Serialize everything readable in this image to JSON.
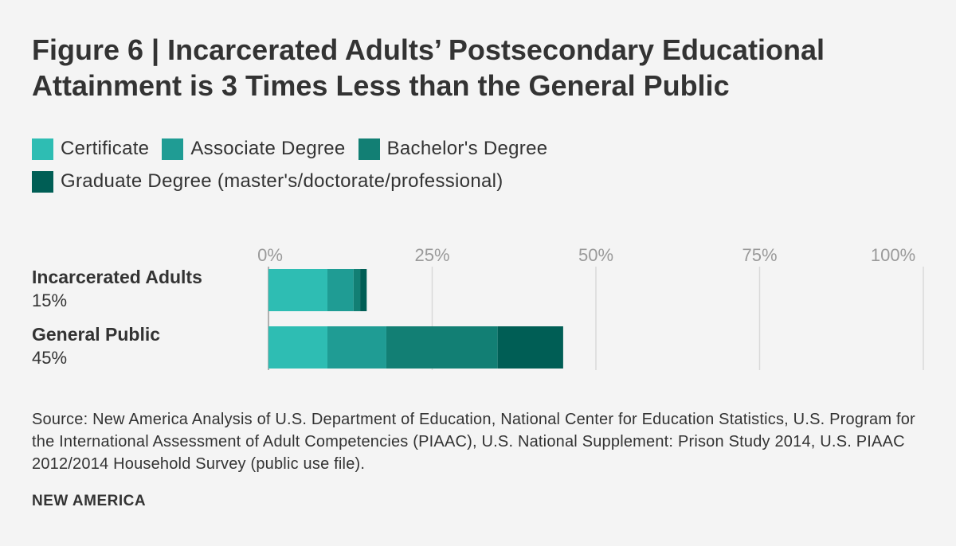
{
  "title": "Figure 6 | Incarcerated Adults’ Postsecondary Educational Attainment is 3 Times Less than the General Public",
  "colors": {
    "certificate": "#2ebdb3",
    "associate": "#1f9c94",
    "bachelors": "#127f74",
    "graduate": "#005e55",
    "grid": "#d9d9d9",
    "axis": "#9a9a9a",
    "text": "#333333",
    "background": "#f4f4f4"
  },
  "legend": {
    "rows": [
      [
        {
          "label": "Certificate",
          "color": "#2ebdb3"
        },
        {
          "label": "Associate Degree",
          "color": "#1f9c94"
        },
        {
          "label": "Bachelor's Degree",
          "color": "#127f74"
        }
      ],
      [
        {
          "label": "Graduate Degree (master's/doctorate/professional)",
          "color": "#005e55"
        }
      ]
    ]
  },
  "chart_data": {
    "type": "bar",
    "orientation": "horizontal",
    "stacked": true,
    "title": "Figure 6 | Incarcerated Adults’ Postsecondary Educational Attainment is 3 Times Less than the General Public",
    "categories": [
      {
        "label": "Incarcerated Adults",
        "total_label": "15%"
      },
      {
        "label": "General Public",
        "total_label": "45%"
      }
    ],
    "series": [
      {
        "name": "Certificate",
        "color": "#2ebdb3",
        "values": [
          9,
          9
        ]
      },
      {
        "name": "Associate Degree",
        "color": "#1f9c94",
        "values": [
          4,
          9
        ]
      },
      {
        "name": "Bachelor's Degree",
        "color": "#127f74",
        "values": [
          1,
          17
        ]
      },
      {
        "name": "Graduate Degree (master's/doctorate/professional)",
        "color": "#005e55",
        "values": [
          1,
          10
        ]
      }
    ],
    "xlim": [
      0,
      100
    ],
    "ticks": [
      0,
      25,
      50,
      75,
      100
    ],
    "tick_labels": [
      "0%",
      "25%",
      "50%",
      "75%",
      "100%"
    ],
    "xlabel": "",
    "ylabel": "",
    "grid": true,
    "legend_position": "top-left"
  },
  "source": "Source: New America Analysis of U.S. Department of Education, National Center for Education Statistics, U.S. Program for the International Assessment of Adult Competencies (PIAAC), U.S. National Supplement: Prison Study 2014, U.S. PIAAC 2012/2014 Household Survey (public use file).",
  "brand": "NEW AMERICA"
}
